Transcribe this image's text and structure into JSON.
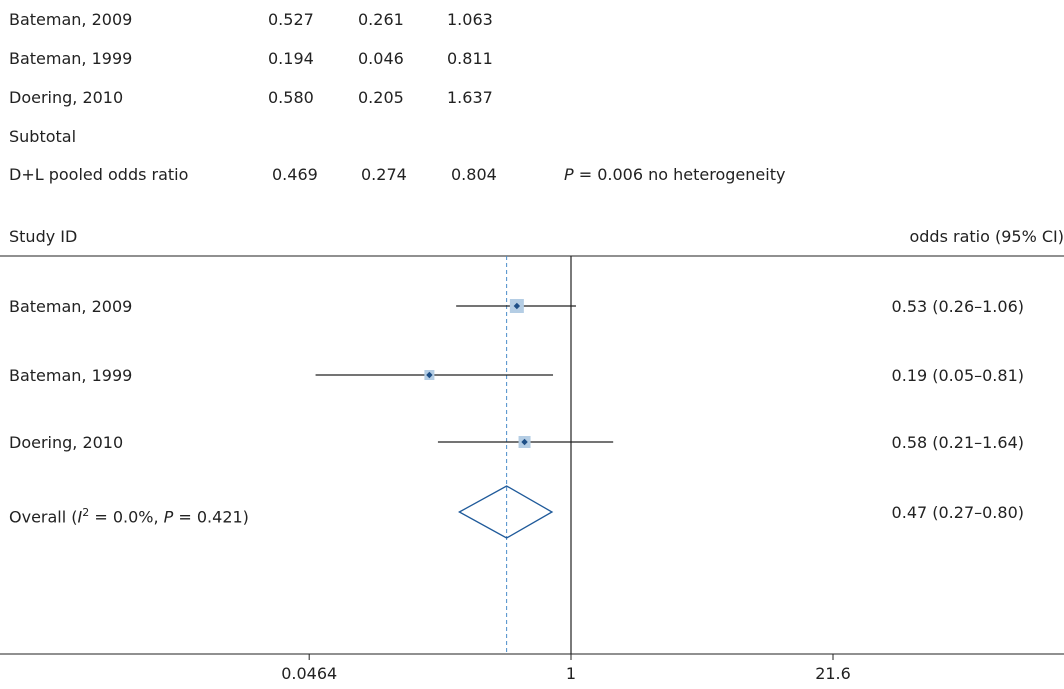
{
  "table": {
    "rows": [
      {
        "study": "Bateman, 2009",
        "or": "0.527",
        "lower": "0.261",
        "upper": "1.063"
      },
      {
        "study": "Bateman, 1999",
        "or": "0.194",
        "lower": "0.046",
        "upper": "0.811"
      },
      {
        "study": "Doering, 2010",
        "or": "0.580",
        "lower": "0.205",
        "upper": "1.637"
      }
    ],
    "subtotal_label": "Subtotal",
    "pooled": {
      "label": "D+L pooled odds ratio",
      "or": "0.469",
      "lower": "0.274",
      "upper": "0.804",
      "p_symbol": "P",
      "p_text": " = 0.006 no heterogeneity"
    }
  },
  "plot": {
    "header_left": "Study ID",
    "header_right": "odds ratio (95% CI)",
    "overall": {
      "prefix": "Overall (",
      "i_symbol": "I",
      "i_sup": "2",
      "i_text": " = 0.0%, ",
      "p_symbol": "P",
      "p_text": " = 0.421)",
      "ci_text": "0.47 (0.27–0.80)"
    },
    "ticks": [
      "0.0464",
      "1",
      "21.6"
    ]
  },
  "chart_data": {
    "type": "forest",
    "x_scale": "log",
    "xlim": [
      0.0464,
      21.6
    ],
    "x_ticks": [
      0.0464,
      1,
      21.6
    ],
    "reference_line": 1,
    "studies": [
      {
        "name": "Bateman, 2009",
        "or": 0.53,
        "lower": 0.26,
        "upper": 1.06,
        "label": "0.53 (0.26–1.06)"
      },
      {
        "name": "Bateman, 1999",
        "or": 0.19,
        "lower": 0.05,
        "upper": 0.81,
        "label": "0.19 (0.05–0.81)"
      },
      {
        "name": "Doering, 2010",
        "or": 0.58,
        "lower": 0.21,
        "upper": 1.64,
        "label": "0.58 (0.21–1.64)"
      }
    ],
    "overall": {
      "or": 0.47,
      "lower": 0.27,
      "upper": 0.8
    },
    "colors": {
      "box": "#b4cde4",
      "point": "#1e4f87",
      "diamond": "#1f5a9a",
      "dashed": "#4a8cc9",
      "line": "#222222"
    }
  }
}
